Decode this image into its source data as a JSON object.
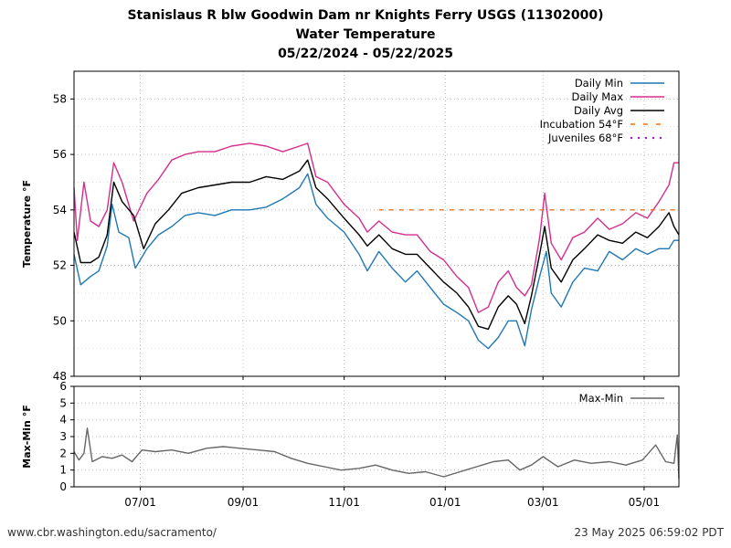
{
  "chart_data": [
    {
      "type": "line",
      "title": [
        "Stanislaus R blw Goodwin Dam nr Knights Ferry USGS (11302000)",
        "Water Temperature",
        "05/22/2024 - 05/22/2025"
      ],
      "xlabel": "",
      "ylabel": "Temperature °F",
      "xlim": [
        "2024-05-22",
        "2025-05-22"
      ],
      "ylim": [
        48,
        59
      ],
      "yticks": [
        48,
        50,
        52,
        54,
        56,
        58
      ],
      "xticks": [
        {
          "date": "2024-07-01",
          "label": "07/01"
        },
        {
          "date": "2024-09-01",
          "label": "09/01"
        },
        {
          "date": "2024-11-01",
          "label": "11/01"
        },
        {
          "date": "2025-01-01",
          "label": "01/01"
        },
        {
          "date": "2025-03-01",
          "label": "03/01"
        },
        {
          "date": "2025-05-01",
          "label": "05/01"
        }
      ],
      "grid": true,
      "legend": "top-right",
      "series": [
        {
          "name": "Daily Min",
          "color": "#1f77b4",
          "style": "solid",
          "points": [
            [
              "2024-05-22",
              52.4
            ],
            [
              "2024-05-26",
              51.3
            ],
            [
              "2024-06-01",
              51.6
            ],
            [
              "2024-06-06",
              51.8
            ],
            [
              "2024-06-11",
              52.7
            ],
            [
              "2024-06-14",
              54.2
            ],
            [
              "2024-06-18",
              53.2
            ],
            [
              "2024-06-24",
              53.0
            ],
            [
              "2024-06-28",
              51.9
            ],
            [
              "2024-07-05",
              52.6
            ],
            [
              "2024-07-12",
              53.1
            ],
            [
              "2024-07-20",
              53.4
            ],
            [
              "2024-07-28",
              53.8
            ],
            [
              "2024-08-05",
              53.9
            ],
            [
              "2024-08-15",
              53.8
            ],
            [
              "2024-08-25",
              54.0
            ],
            [
              "2024-09-05",
              54.0
            ],
            [
              "2024-09-15",
              54.1
            ],
            [
              "2024-09-25",
              54.4
            ],
            [
              "2024-10-05",
              54.8
            ],
            [
              "2024-10-10",
              55.3
            ],
            [
              "2024-10-15",
              54.2
            ],
            [
              "2024-10-22",
              53.7
            ],
            [
              "2024-11-01",
              53.2
            ],
            [
              "2024-11-10",
              52.4
            ],
            [
              "2024-11-15",
              51.8
            ],
            [
              "2024-11-22",
              52.5
            ],
            [
              "2024-11-30",
              51.9
            ],
            [
              "2024-12-08",
              51.4
            ],
            [
              "2024-12-15",
              51.8
            ],
            [
              "2024-12-23",
              51.2
            ],
            [
              "2024-12-31",
              50.6
            ],
            [
              "2025-01-08",
              50.3
            ],
            [
              "2025-01-15",
              50.0
            ],
            [
              "2025-01-21",
              49.3
            ],
            [
              "2025-01-27",
              49.0
            ],
            [
              "2025-02-02",
              49.4
            ],
            [
              "2025-02-08",
              50.0
            ],
            [
              "2025-02-13",
              50.0
            ],
            [
              "2025-02-18",
              49.1
            ],
            [
              "2025-02-22",
              50.4
            ],
            [
              "2025-02-27",
              51.6
            ],
            [
              "2025-03-03",
              52.5
            ],
            [
              "2025-03-06",
              51.0
            ],
            [
              "2025-03-12",
              50.5
            ],
            [
              "2025-03-19",
              51.4
            ],
            [
              "2025-03-26",
              51.9
            ],
            [
              "2025-04-03",
              51.8
            ],
            [
              "2025-04-10",
              52.5
            ],
            [
              "2025-04-18",
              52.2
            ],
            [
              "2025-04-26",
              52.6
            ],
            [
              "2025-05-03",
              52.4
            ],
            [
              "2025-05-10",
              52.6
            ],
            [
              "2025-05-16",
              52.6
            ],
            [
              "2025-05-19",
              52.9
            ],
            [
              "2025-05-22",
              52.9
            ]
          ]
        },
        {
          "name": "Daily Max",
          "color": "#d62d8c",
          "style": "solid",
          "points": [
            [
              "2024-05-22",
              54.8
            ],
            [
              "2024-05-24",
              52.9
            ],
            [
              "2024-05-28",
              55.0
            ],
            [
              "2024-06-01",
              53.6
            ],
            [
              "2024-06-06",
              53.4
            ],
            [
              "2024-06-11",
              54.0
            ],
            [
              "2024-06-15",
              55.7
            ],
            [
              "2024-06-20",
              55.0
            ],
            [
              "2024-06-27",
              53.6
            ],
            [
              "2024-07-05",
              54.6
            ],
            [
              "2024-07-12",
              55.1
            ],
            [
              "2024-07-20",
              55.8
            ],
            [
              "2024-07-28",
              56.0
            ],
            [
              "2024-08-05",
              56.1
            ],
            [
              "2024-08-15",
              56.1
            ],
            [
              "2024-08-25",
              56.3
            ],
            [
              "2024-09-05",
              56.4
            ],
            [
              "2024-09-15",
              56.3
            ],
            [
              "2024-09-25",
              56.1
            ],
            [
              "2024-10-05",
              56.3
            ],
            [
              "2024-10-10",
              56.4
            ],
            [
              "2024-10-15",
              55.2
            ],
            [
              "2024-10-22",
              55.0
            ],
            [
              "2024-11-01",
              54.2
            ],
            [
              "2024-11-10",
              53.7
            ],
            [
              "2024-11-15",
              53.2
            ],
            [
              "2024-11-22",
              53.6
            ],
            [
              "2024-11-30",
              53.2
            ],
            [
              "2024-12-08",
              53.1
            ],
            [
              "2024-12-15",
              53.1
            ],
            [
              "2024-12-23",
              52.5
            ],
            [
              "2024-12-31",
              52.2
            ],
            [
              "2025-01-08",
              51.6
            ],
            [
              "2025-01-15",
              51.2
            ],
            [
              "2025-01-21",
              50.3
            ],
            [
              "2025-01-27",
              50.5
            ],
            [
              "2025-02-02",
              51.4
            ],
            [
              "2025-02-08",
              51.8
            ],
            [
              "2025-02-13",
              51.2
            ],
            [
              "2025-02-18",
              50.9
            ],
            [
              "2025-02-22",
              51.3
            ],
            [
              "2025-02-27",
              53.0
            ],
            [
              "2025-03-02",
              54.6
            ],
            [
              "2025-03-06",
              52.8
            ],
            [
              "2025-03-12",
              52.2
            ],
            [
              "2025-03-19",
              53.0
            ],
            [
              "2025-03-26",
              53.2
            ],
            [
              "2025-04-03",
              53.7
            ],
            [
              "2025-04-10",
              53.3
            ],
            [
              "2025-04-18",
              53.5
            ],
            [
              "2025-04-26",
              53.9
            ],
            [
              "2025-05-03",
              53.7
            ],
            [
              "2025-05-10",
              54.3
            ],
            [
              "2025-05-16",
              54.9
            ],
            [
              "2025-05-19",
              55.7
            ],
            [
              "2025-05-22",
              55.7
            ]
          ]
        },
        {
          "name": "Daily Avg",
          "color": "#000000",
          "style": "solid",
          "points": [
            [
              "2024-05-22",
              53.2
            ],
            [
              "2024-05-26",
              52.1
            ],
            [
              "2024-06-01",
              52.1
            ],
            [
              "2024-06-06",
              52.3
            ],
            [
              "2024-06-11",
              53.1
            ],
            [
              "2024-06-15",
              55.0
            ],
            [
              "2024-06-20",
              54.3
            ],
            [
              "2024-06-27",
              53.8
            ],
            [
              "2024-07-03",
              52.6
            ],
            [
              "2024-07-10",
              53.5
            ],
            [
              "2024-07-18",
              54.0
            ],
            [
              "2024-07-26",
              54.6
            ],
            [
              "2024-08-05",
              54.8
            ],
            [
              "2024-08-15",
              54.9
            ],
            [
              "2024-08-25",
              55.0
            ],
            [
              "2024-09-05",
              55.0
            ],
            [
              "2024-09-15",
              55.2
            ],
            [
              "2024-09-25",
              55.1
            ],
            [
              "2024-10-05",
              55.4
            ],
            [
              "2024-10-10",
              55.8
            ],
            [
              "2024-10-15",
              54.8
            ],
            [
              "2024-10-22",
              54.4
            ],
            [
              "2024-11-01",
              53.7
            ],
            [
              "2024-11-10",
              53.1
            ],
            [
              "2024-11-15",
              52.7
            ],
            [
              "2024-11-22",
              53.1
            ],
            [
              "2024-11-30",
              52.6
            ],
            [
              "2024-12-08",
              52.4
            ],
            [
              "2024-12-15",
              52.4
            ],
            [
              "2024-12-23",
              51.9
            ],
            [
              "2024-12-31",
              51.4
            ],
            [
              "2025-01-08",
              51.0
            ],
            [
              "2025-01-15",
              50.5
            ],
            [
              "2025-01-21",
              49.8
            ],
            [
              "2025-01-27",
              49.7
            ],
            [
              "2025-02-02",
              50.5
            ],
            [
              "2025-02-08",
              50.9
            ],
            [
              "2025-02-13",
              50.6
            ],
            [
              "2025-02-18",
              49.9
            ],
            [
              "2025-02-22",
              50.9
            ],
            [
              "2025-02-27",
              52.4
            ],
            [
              "2025-03-02",
              53.4
            ],
            [
              "2025-03-06",
              51.9
            ],
            [
              "2025-03-12",
              51.4
            ],
            [
              "2025-03-19",
              52.2
            ],
            [
              "2025-03-26",
              52.6
            ],
            [
              "2025-04-03",
              53.1
            ],
            [
              "2025-04-10",
              52.9
            ],
            [
              "2025-04-18",
              52.8
            ],
            [
              "2025-04-26",
              53.2
            ],
            [
              "2025-05-03",
              53.0
            ],
            [
              "2025-05-10",
              53.4
            ],
            [
              "2025-05-16",
              53.9
            ],
            [
              "2025-05-19",
              53.4
            ],
            [
              "2025-05-22",
              53.1
            ]
          ]
        },
        {
          "name": "Incubation 54°F",
          "color": "#e8731c",
          "style": "dashed",
          "points": [
            [
              "2024-11-22",
              54
            ],
            [
              "2025-05-22",
              54
            ]
          ]
        },
        {
          "name": "Juveniles 68°F",
          "color": "#a020d0",
          "style": "dotted",
          "points": []
        }
      ]
    },
    {
      "type": "line",
      "title": "",
      "xlabel": "",
      "ylabel": "Max-Min °F",
      "xlim": [
        "2024-05-22",
        "2025-05-22"
      ],
      "ylim": [
        0,
        6
      ],
      "yticks": [
        0,
        1,
        2,
        3,
        4,
        5,
        6
      ],
      "grid": true,
      "legend": "top-right",
      "series": [
        {
          "name": "Max-Min",
          "color": "#666666",
          "style": "solid",
          "points": [
            [
              "2024-05-22",
              2.1
            ],
            [
              "2024-05-25",
              1.6
            ],
            [
              "2024-05-28",
              2.0
            ],
            [
              "2024-05-30",
              3.5
            ],
            [
              "2024-06-02",
              1.5
            ],
            [
              "2024-06-08",
              1.8
            ],
            [
              "2024-06-14",
              1.7
            ],
            [
              "2024-06-20",
              1.9
            ],
            [
              "2024-06-26",
              1.5
            ],
            [
              "2024-07-02",
              2.2
            ],
            [
              "2024-07-10",
              2.1
            ],
            [
              "2024-07-20",
              2.2
            ],
            [
              "2024-07-30",
              2.0
            ],
            [
              "2024-08-10",
              2.3
            ],
            [
              "2024-08-20",
              2.4
            ],
            [
              "2024-08-30",
              2.3
            ],
            [
              "2024-09-10",
              2.2
            ],
            [
              "2024-09-20",
              2.1
            ],
            [
              "2024-09-30",
              1.7
            ],
            [
              "2024-10-10",
              1.4
            ],
            [
              "2024-10-20",
              1.2
            ],
            [
              "2024-10-30",
              1.0
            ],
            [
              "2024-11-10",
              1.1
            ],
            [
              "2024-11-20",
              1.3
            ],
            [
              "2024-11-30",
              1.0
            ],
            [
              "2024-12-10",
              0.8
            ],
            [
              "2024-12-20",
              0.9
            ],
            [
              "2024-12-31",
              0.6
            ],
            [
              "2025-01-10",
              0.9
            ],
            [
              "2025-01-20",
              1.2
            ],
            [
              "2025-01-30",
              1.5
            ],
            [
              "2025-02-08",
              1.6
            ],
            [
              "2025-02-15",
              1.0
            ],
            [
              "2025-02-22",
              1.3
            ],
            [
              "2025-03-01",
              1.8
            ],
            [
              "2025-03-10",
              1.2
            ],
            [
              "2025-03-20",
              1.6
            ],
            [
              "2025-03-30",
              1.4
            ],
            [
              "2025-04-10",
              1.5
            ],
            [
              "2025-04-20",
              1.3
            ],
            [
              "2025-04-30",
              1.6
            ],
            [
              "2025-05-08",
              2.5
            ],
            [
              "2025-05-14",
              1.5
            ],
            [
              "2025-05-19",
              1.4
            ],
            [
              "2025-05-21",
              3.1
            ],
            [
              "2025-05-22",
              0.5
            ]
          ]
        }
      ]
    }
  ],
  "footer": {
    "url": "www.cbr.washington.edu/sacramento/",
    "timestamp": "23 May 2025 06:59:02 PDT"
  }
}
